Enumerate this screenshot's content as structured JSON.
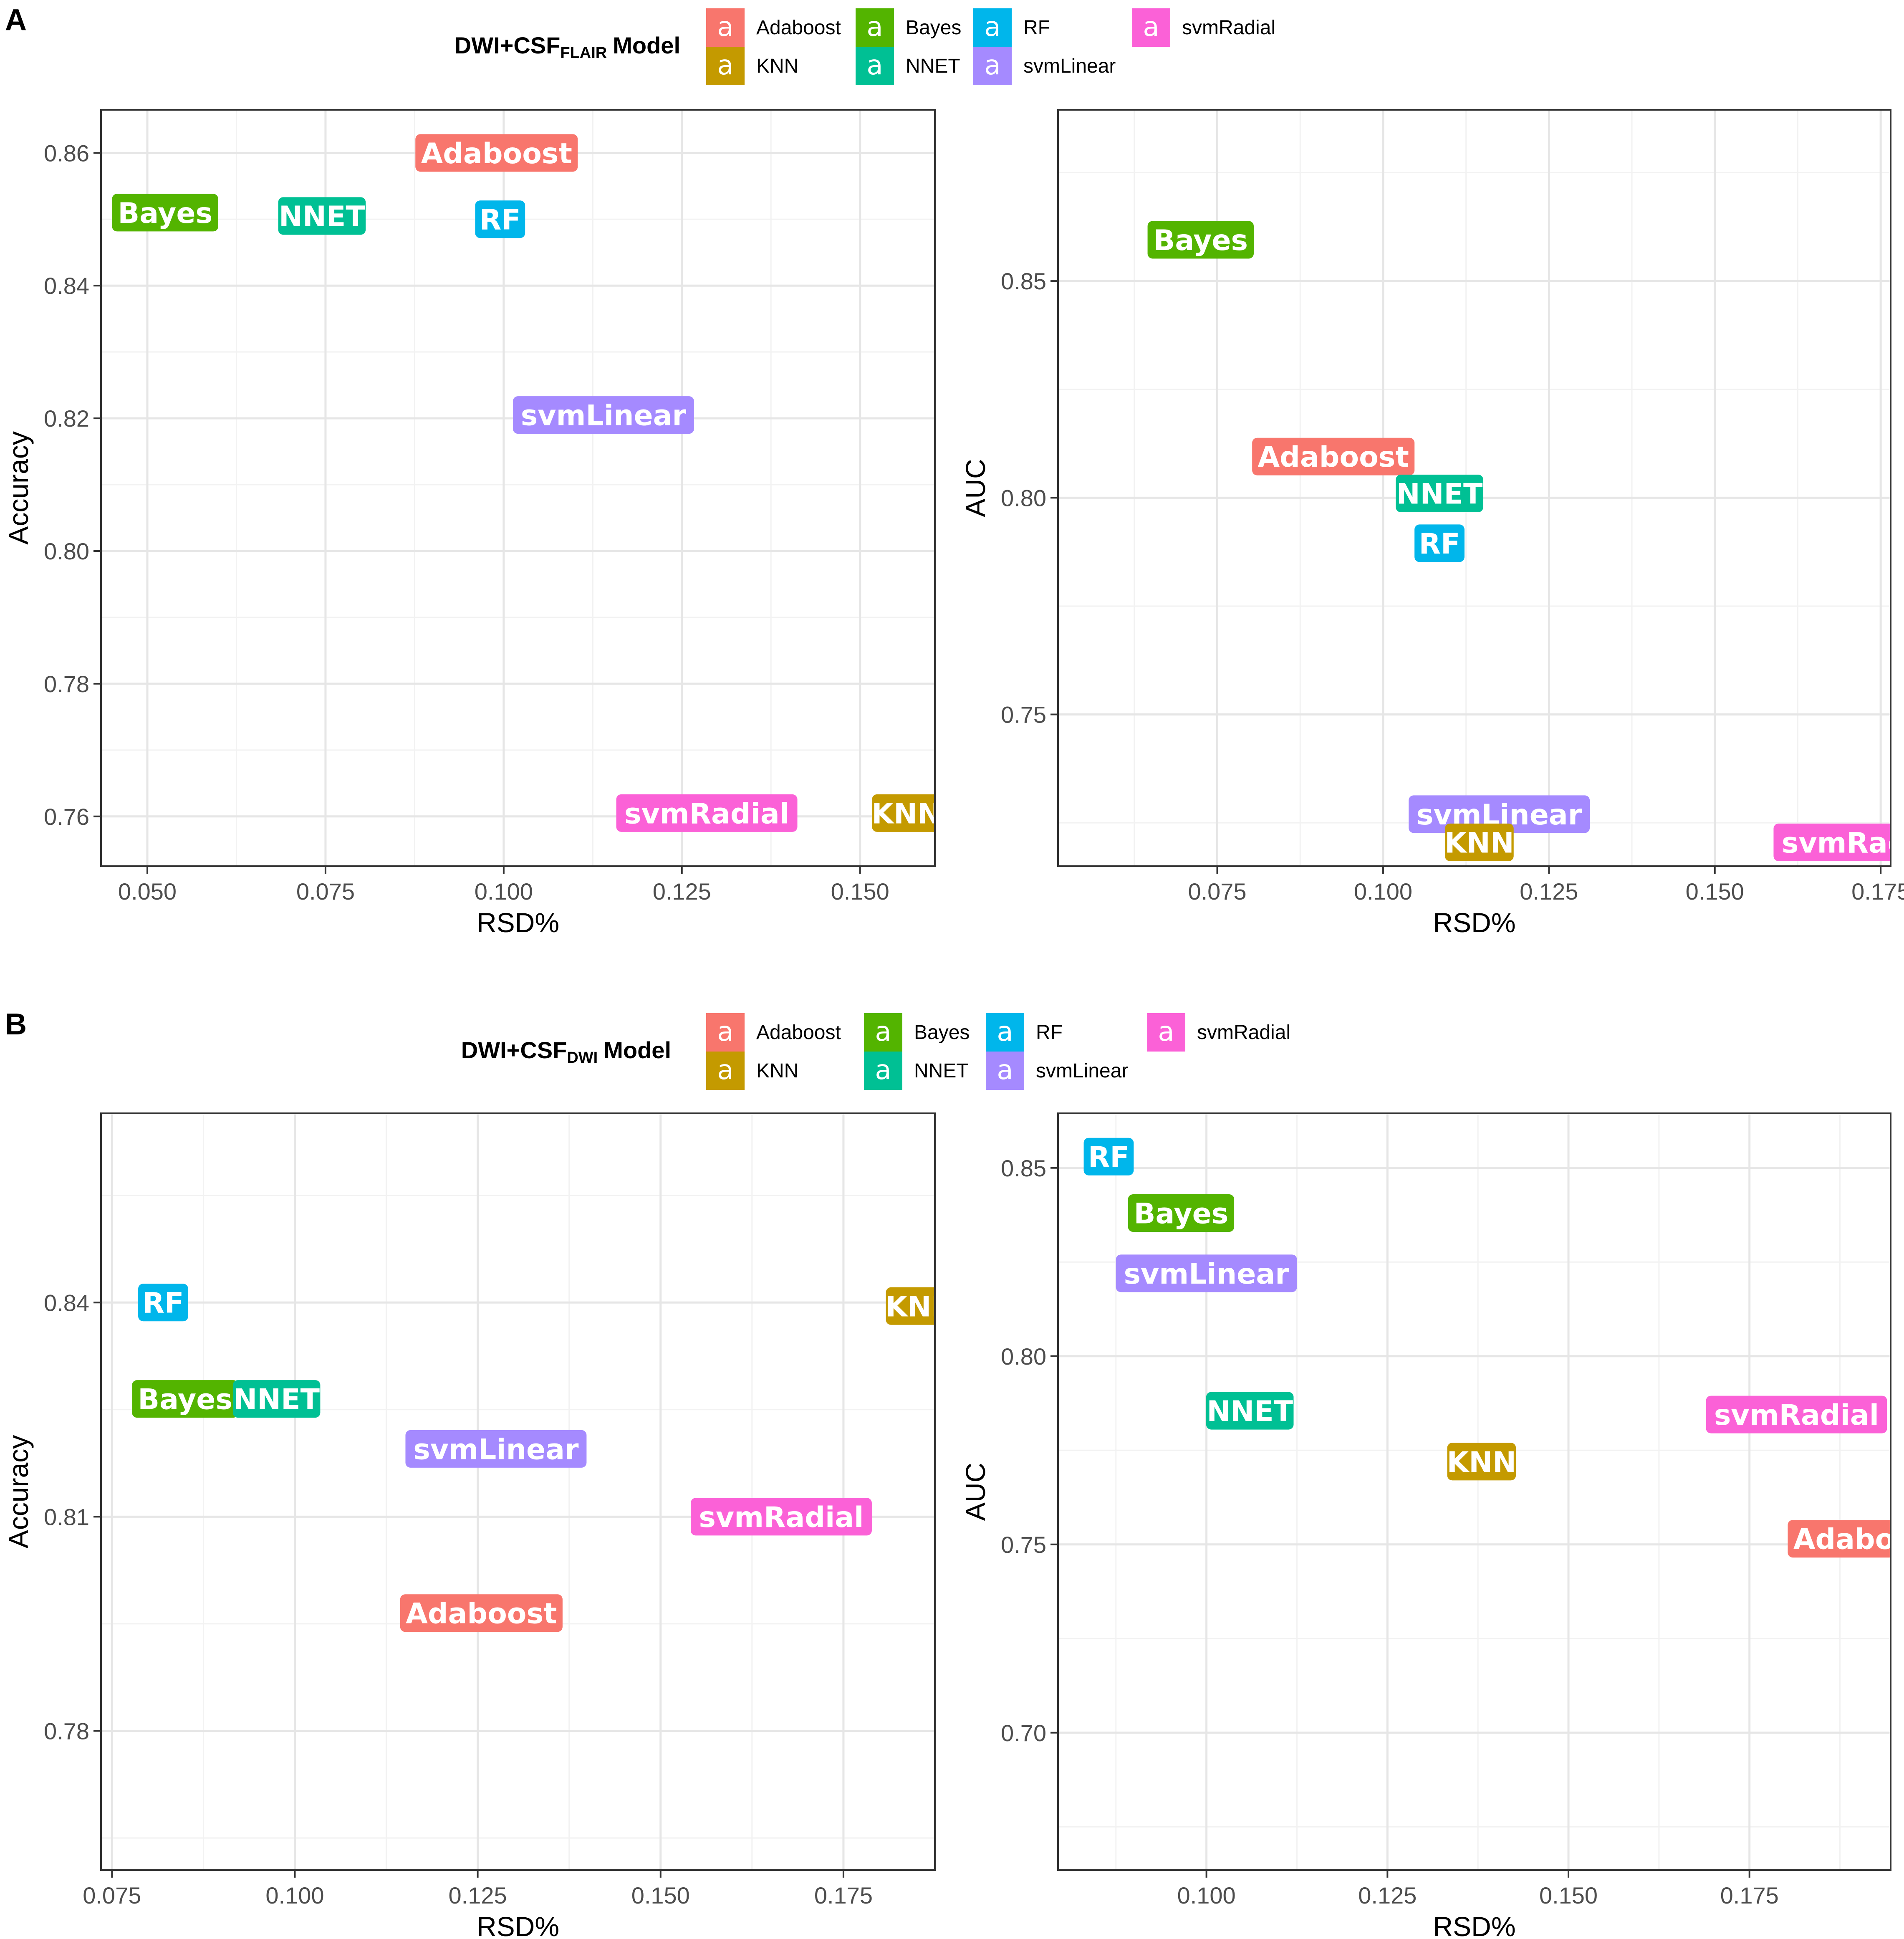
{
  "colors": {
    "Adaboost": "#F8766D",
    "KNN": "#C49A00",
    "Bayes": "#53B400",
    "NNET": "#00C094",
    "RF": "#00B6EB",
    "svmLinear": "#A58AFF",
    "svmRadial": "#FB61D7"
  },
  "legend_key_glyph": "a",
  "chart_data": [
    {
      "panel": "A",
      "legend_title_main": "DWI+CSF",
      "legend_title_sub": "FLAIR",
      "legend_title_suffix": "Model",
      "legend_items": [
        "Adaboost",
        "Bayes",
        "RF",
        "svmRadial",
        "KNN",
        "NNET",
        "svmLinear"
      ],
      "plots": [
        {
          "type": "scatter",
          "xlabel": "RSD%",
          "ylabel": "Accuracy",
          "xlim": [
            0.0435,
            0.1605
          ],
          "ylim": [
            0.7525,
            0.8665
          ],
          "xticks": [
            "0.050",
            "0.075",
            "0.100",
            "0.125",
            "0.150"
          ],
          "xtick_values": [
            0.05,
            0.075,
            0.1,
            0.125,
            0.15
          ],
          "yticks": [
            "0.76",
            "0.78",
            "0.80",
            "0.82",
            "0.84",
            "0.86"
          ],
          "ytick_values": [
            0.76,
            0.78,
            0.8,
            0.82,
            0.84,
            0.86
          ],
          "points": [
            {
              "label": "Adaboost",
              "x": 0.099,
              "y": 0.86
            },
            {
              "label": "Bayes",
              "x": 0.0525,
              "y": 0.851
            },
            {
              "label": "NNET",
              "x": 0.0745,
              "y": 0.8505
            },
            {
              "label": "RF",
              "x": 0.0995,
              "y": 0.85
            },
            {
              "label": "svmLinear",
              "x": 0.114,
              "y": 0.8205
            },
            {
              "label": "svmRadial",
              "x": 0.1285,
              "y": 0.7605
            },
            {
              "label": "KNN",
              "x": 0.1565,
              "y": 0.7605
            }
          ]
        },
        {
          "type": "scatter",
          "xlabel": "RSD%",
          "ylabel": "AUC",
          "xlim": [
            0.051,
            0.1765
          ],
          "ylim": [
            0.715,
            0.8895
          ],
          "xticks": [
            "0.075",
            "0.100",
            "0.125",
            "0.150",
            "0.175"
          ],
          "xtick_values": [
            0.075,
            0.1,
            0.125,
            0.15,
            0.175
          ],
          "yticks": [
            "0.75",
            "0.80",
            "0.85"
          ],
          "ytick_values": [
            0.75,
            0.8,
            0.85
          ],
          "points": [
            {
              "label": "Bayes",
              "x": 0.0725,
              "y": 0.8595
            },
            {
              "label": "Adaboost",
              "x": 0.0925,
              "y": 0.8095
            },
            {
              "label": "NNET",
              "x": 0.1085,
              "y": 0.801
            },
            {
              "label": "RF",
              "x": 0.1085,
              "y": 0.7895
            },
            {
              "label": "svmLinear",
              "x": 0.1175,
              "y": 0.727
            },
            {
              "label": "KNN",
              "x": 0.1145,
              "y": 0.7205
            },
            {
              "label": "svmRadial",
              "x": 0.1725,
              "y": 0.7205
            }
          ]
        }
      ]
    },
    {
      "panel": "B",
      "legend_title_main": "DWI+CSF",
      "legend_title_sub": "DWI",
      "legend_title_suffix": "Model",
      "legend_items": [
        "Adaboost",
        "Bayes",
        "RF",
        "svmRadial",
        "KNN",
        "NNET",
        "svmLinear"
      ],
      "plots": [
        {
          "type": "scatter",
          "xlabel": "RSD%",
          "ylabel": "Accuracy",
          "xlim": [
            0.0735,
            0.1875
          ],
          "ylim": [
            0.7605,
            0.8665
          ],
          "xticks": [
            "0.075",
            "0.100",
            "0.125",
            "0.150",
            "0.175"
          ],
          "xtick_values": [
            0.075,
            0.1,
            0.125,
            0.15,
            0.175
          ],
          "yticks": [
            "0.78",
            "0.81",
            "0.84"
          ],
          "ytick_values": [
            0.78,
            0.81,
            0.84
          ],
          "points": [
            {
              "label": "RF",
              "x": 0.082,
              "y": 0.84
            },
            {
              "label": "Bayes",
              "x": 0.085,
              "y": 0.8265
            },
            {
              "label": "NNET",
              "x": 0.0975,
              "y": 0.8265
            },
            {
              "label": "svmLinear",
              "x": 0.1275,
              "y": 0.8195
            },
            {
              "label": "svmRadial",
              "x": 0.1665,
              "y": 0.81
            },
            {
              "label": "Adaboost",
              "x": 0.1255,
              "y": 0.7965
            },
            {
              "label": "KNN",
              "x": 0.1855,
              "y": 0.8395
            }
          ]
        },
        {
          "type": "scatter",
          "xlabel": "RSD%",
          "ylabel": "AUC",
          "xlim": [
            0.0795,
            0.1945
          ],
          "ylim": [
            0.6635,
            0.8645
          ],
          "xticks": [
            "0.100",
            "0.125",
            "0.150",
            "0.175"
          ],
          "xtick_values": [
            0.1,
            0.125,
            0.15,
            0.175
          ],
          "yticks": [
            "0.70",
            "0.75",
            "0.80",
            "0.85"
          ],
          "ytick_values": [
            0.7,
            0.75,
            0.8,
            0.85
          ],
          "points": [
            {
              "label": "RF",
              "x": 0.0865,
              "y": 0.853
            },
            {
              "label": "Bayes",
              "x": 0.0965,
              "y": 0.838
            },
            {
              "label": "svmLinear",
              "x": 0.1,
              "y": 0.822
            },
            {
              "label": "NNET",
              "x": 0.106,
              "y": 0.7855
            },
            {
              "label": "KNN",
              "x": 0.138,
              "y": 0.772
            },
            {
              "label": "svmRadial",
              "x": 0.1815,
              "y": 0.7845
            },
            {
              "label": "Adaboost",
              "x": 0.1915,
              "y": 0.7515
            }
          ]
        }
      ]
    }
  ]
}
